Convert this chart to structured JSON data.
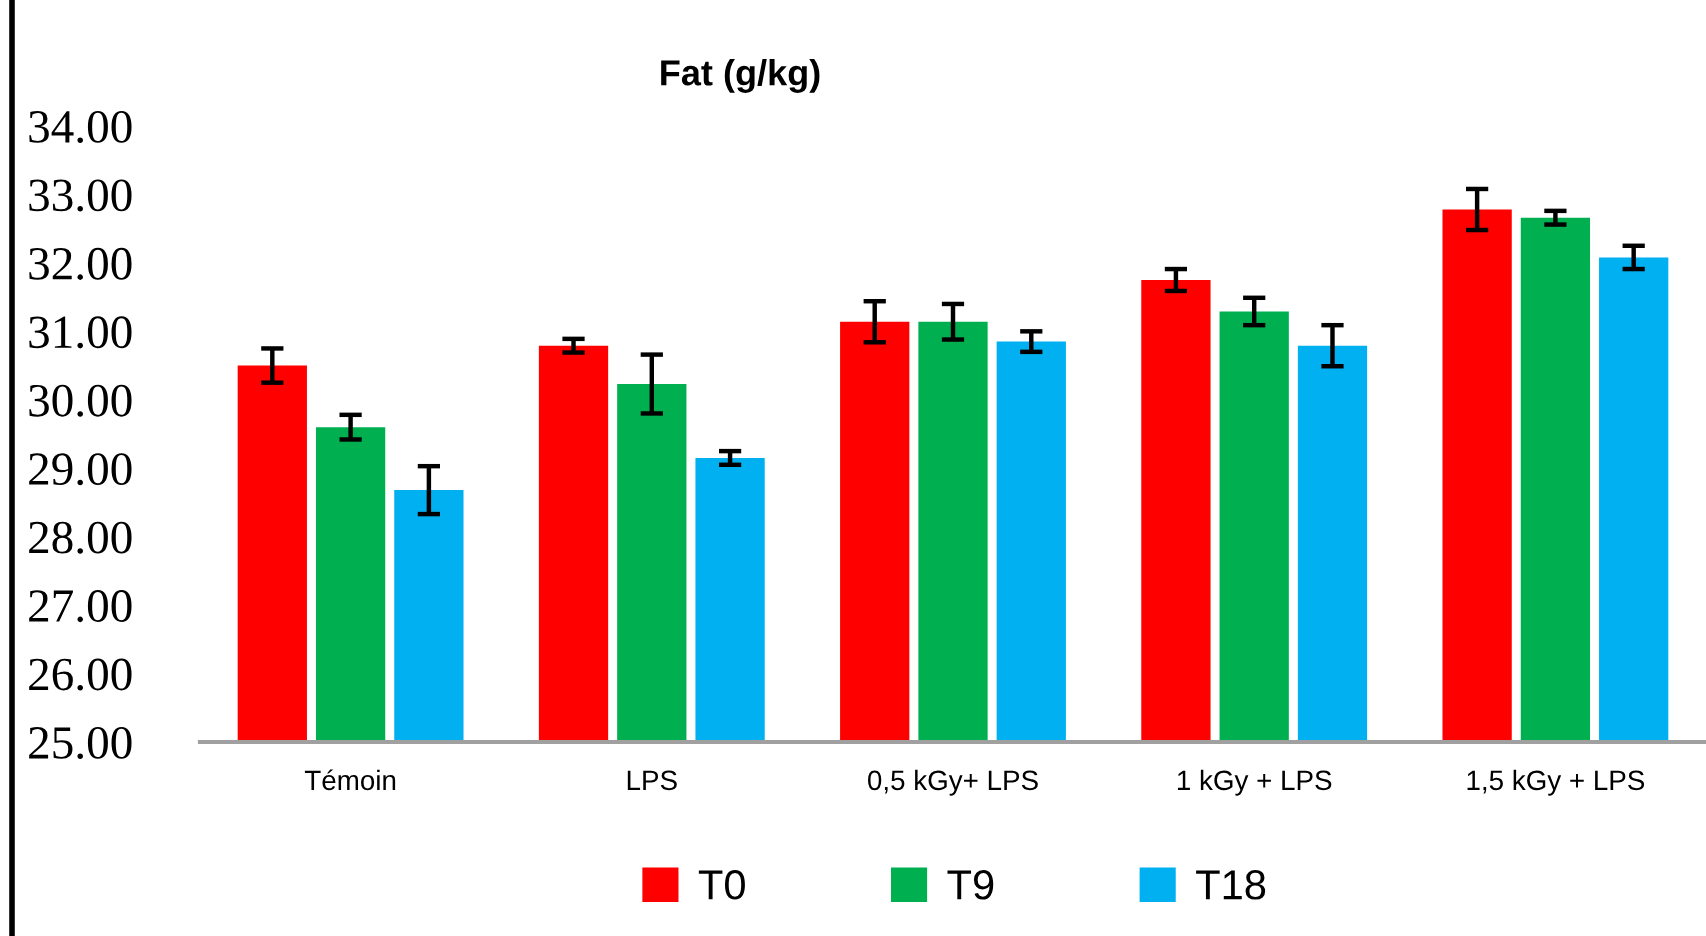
{
  "chart_data": {
    "type": "bar",
    "title": "Fat (g/kg)",
    "categories": [
      "Témoin",
      "LPS",
      "0,5 kGy+ LPS",
      "1 kGy + LPS",
      "1,5 kGy + LPS"
    ],
    "series": [
      {
        "name": "T0",
        "color": "#ff0000",
        "values": [
          30.5,
          30.79,
          31.14,
          31.75,
          32.78
        ],
        "errors": [
          0.25,
          0.1,
          0.3,
          0.16,
          0.3
        ]
      },
      {
        "name": "T9",
        "color": "#00b050",
        "values": [
          29.6,
          30.23,
          31.14,
          31.29,
          32.66
        ],
        "errors": [
          0.18,
          0.43,
          0.26,
          0.2,
          0.1
        ]
      },
      {
        "name": "T18",
        "color": "#00b0f0",
        "values": [
          28.68,
          29.15,
          30.85,
          30.79,
          32.08
        ],
        "errors": [
          0.35,
          0.1,
          0.15,
          0.3,
          0.17
        ]
      }
    ],
    "ylim": [
      25,
      34
    ],
    "yticks": [
      {
        "value": 25,
        "label": "25.00"
      },
      {
        "value": 26,
        "label": "26.00"
      },
      {
        "value": 27,
        "label": "27.00"
      },
      {
        "value": 28,
        "label": "28.00"
      },
      {
        "value": 29,
        "label": "29.00"
      },
      {
        "value": 30,
        "label": "30.00"
      },
      {
        "value": 31,
        "label": "31.00"
      },
      {
        "value": 32,
        "label": "32.00"
      },
      {
        "value": 33,
        "label": "33.00"
      },
      {
        "value": 34,
        "label": "34.00"
      }
    ],
    "grid": false,
    "legend": "bottom"
  }
}
